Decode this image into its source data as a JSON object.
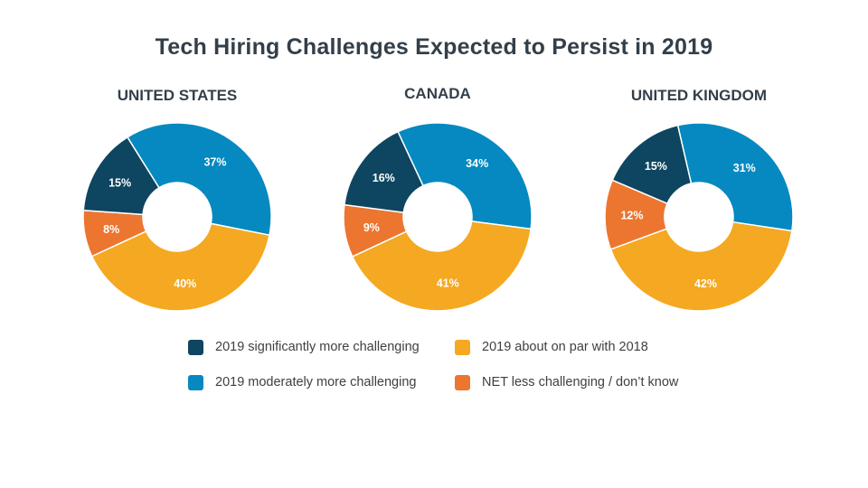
{
  "title": "Tech Hiring Challenges Expected to Persist in 2019",
  "colors": {
    "dark_navy": "#0e4560",
    "blue": "#0589c0",
    "yellow": "#f5a821",
    "orange": "#ec7630",
    "title_text": "#333f4a",
    "legend_text": "#404040"
  },
  "legend": [
    {
      "key": "significantly_more",
      "label": "2019 significantly more challenging",
      "color": "#0e4560"
    },
    {
      "key": "moderately_more",
      "label": "2019 moderately more  challenging",
      "color": "#0589c0"
    },
    {
      "key": "on_par",
      "label": "2019 about on par with 2018",
      "color": "#f5a821"
    },
    {
      "key": "less_dont_know",
      "label": "NET less challenging / don’t know",
      "color": "#ec7630"
    }
  ],
  "chart_data": [
    {
      "type": "pie",
      "variant": "donut",
      "title": "UNITED STATES",
      "categories": [
        "2019 moderately more  challenging",
        "2019 about on par with 2018",
        "NET less challenging / don’t know",
        "2019 significantly more challenging"
      ],
      "values": [
        37,
        40,
        8,
        15
      ],
      "labels": [
        "37%",
        "40%",
        "8%",
        "15%"
      ],
      "colors": [
        "#0589c0",
        "#f5a821",
        "#ec7630",
        "#0e4560"
      ]
    },
    {
      "type": "pie",
      "variant": "donut",
      "title": "CANADA",
      "categories": [
        "2019 moderately more  challenging",
        "2019 about on par with 2018",
        "NET less challenging / don’t know",
        "2019 significantly more challenging"
      ],
      "values": [
        34,
        41,
        9,
        16
      ],
      "labels": [
        "34%",
        "41%",
        "9%",
        "16%"
      ],
      "colors": [
        "#0589c0",
        "#f5a821",
        "#ec7630",
        "#0e4560"
      ]
    },
    {
      "type": "pie",
      "variant": "donut",
      "title": "UNITED KINGDOM",
      "categories": [
        "2019 moderately more  challenging",
        "2019 about on par with 2018",
        "NET less challenging / don’t know",
        "2019 significantly more challenging"
      ],
      "values": [
        31,
        42,
        12,
        15
      ],
      "labels": [
        "31%",
        "42%",
        "12%",
        "15%"
      ],
      "colors": [
        "#0589c0",
        "#f5a821",
        "#ec7630",
        "#0e4560"
      ]
    }
  ]
}
